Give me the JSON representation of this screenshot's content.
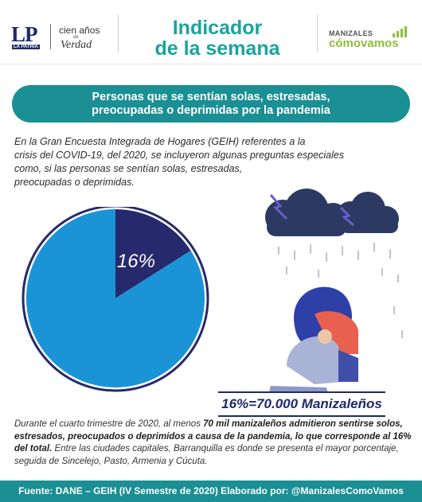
{
  "header": {
    "lp_logo": "LP",
    "lp_sub": "LA PATRIA",
    "cien_anos": "cien años",
    "de": "de",
    "verdad": "Verdad",
    "title_line1": "Indicador",
    "title_line2": "de la semana",
    "brand_top": "MANIZALES",
    "brand_bottom": "cómovamos"
  },
  "banner": {
    "line1": "Personas que se sentían solas, estresadas,",
    "line2": "preocupadas o deprimidas por la pandemia"
  },
  "intro": {
    "l1": "En la Gran Encuesta Integrada de Hogares (GEIH) referentes a la",
    "l2": "crisis del COVID-19, del 2020, se incluyeron algunas preguntas especiales",
    "l3": "como, si las personas se sentían solas, estresadas,",
    "l4": "preocupadas o deprimidas."
  },
  "chart_data": {
    "type": "pie",
    "slices": [
      {
        "value": 16,
        "label": "16%",
        "color": "#26296b"
      },
      {
        "value": 84,
        "color": "#1b93d7"
      }
    ]
  },
  "result": {
    "text": "16%=70.000 Manizaleños"
  },
  "outro": {
    "p1": "Durante el cuarto trimestre de 2020, al menos ",
    "b1": "70 mil manizaleños admitieron sentirse solos, estresados, preocupados o deprimidos a causa de la pandemia, lo que corresponde al 16% del total.",
    "p2": " Entre las ciudades capitales, Barranquilla es donde se presenta el mayor porcentaje, seguida de Sincelejo, Pasto, Armenia y Cúcuta."
  },
  "footer": {
    "text": "Fuente: DANE – GEIH (IV Semestre de 2020) Elaborado por: @ManizalesComoVamos"
  },
  "colors": {
    "teal": "#1a8f94",
    "title_teal": "#1aa3a0",
    "navy": "#26296b",
    "blue": "#1b93d7",
    "green": "#8cbf3f"
  }
}
